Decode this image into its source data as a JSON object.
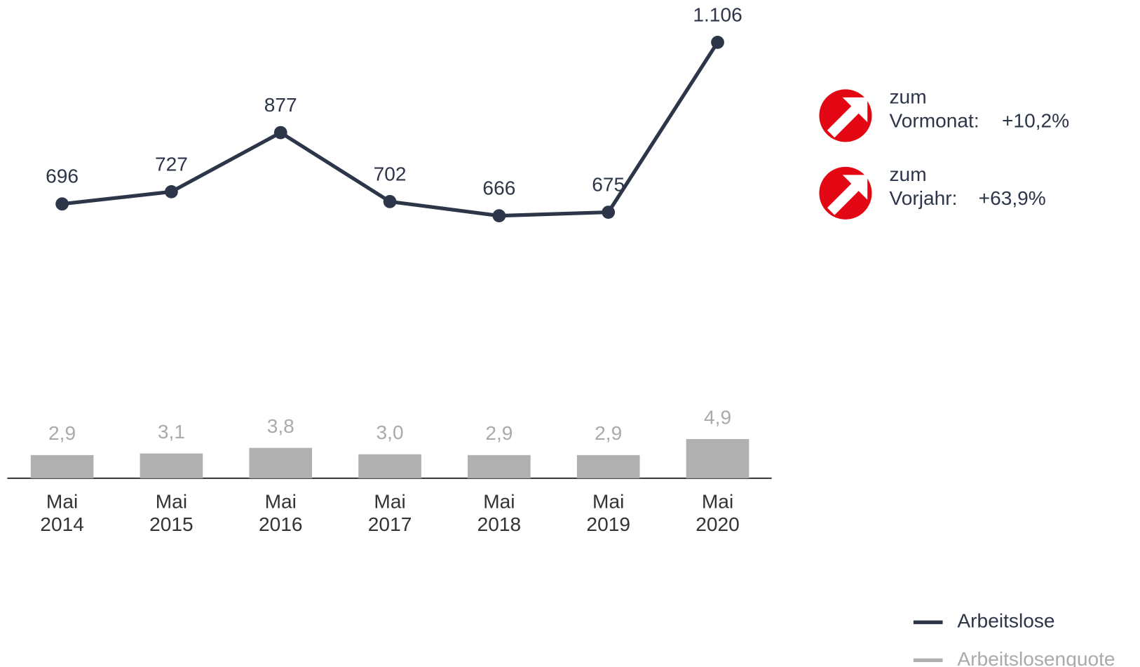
{
  "chart_data": {
    "type": "line-bar",
    "categories": [
      [
        "Mai",
        "2014"
      ],
      [
        "Mai",
        "2015"
      ],
      [
        "Mai",
        "2016"
      ],
      [
        "Mai",
        "2017"
      ],
      [
        "Mai",
        "2018"
      ],
      [
        "Mai",
        "2019"
      ],
      [
        "Mai",
        "2020"
      ]
    ],
    "series": [
      {
        "name": "Arbeitslose",
        "type": "line",
        "color": "#2d3648",
        "values": [
          696,
          727,
          877,
          702,
          666,
          675,
          1106
        ],
        "value_labels": [
          "696",
          "727",
          "877",
          "702",
          "666",
          "675",
          "1.106"
        ]
      },
      {
        "name": "Arbeitslosenquote",
        "type": "bar",
        "axis": "y2",
        "color": "#b0b0b0",
        "values": [
          2.9,
          3.1,
          3.8,
          3.0,
          2.9,
          2.9,
          4.9
        ],
        "value_labels": [
          "2,9",
          "3,1",
          "3,8",
          "3,0",
          "2,9",
          "2,9",
          "4,9"
        ]
      }
    ],
    "ylim": [
      0,
      1176
    ],
    "y2lim": [
      0,
      58
    ],
    "legend": "bottom-right",
    "annotations": [
      {
        "line1": "zum",
        "line2": "Vormonat:",
        "change": "+10,2%",
        "color": "#e30613"
      },
      {
        "line1": "zum",
        "line2": "Vorjahr:",
        "change": "+63,9%",
        "color": "#e30613"
      }
    ]
  }
}
